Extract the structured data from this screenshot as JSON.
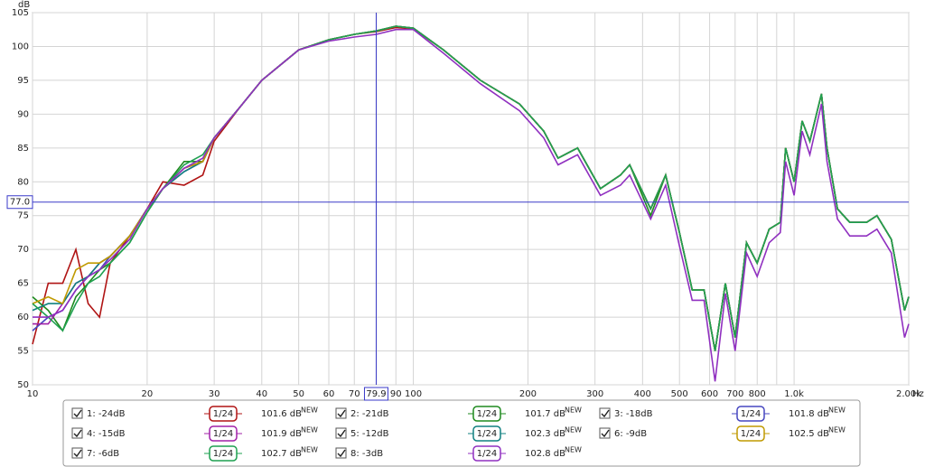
{
  "chart_data": {
    "type": "line",
    "x_unit": "Hz",
    "y_unit": "dB",
    "xlog": true,
    "grid": true,
    "xlim": [
      10,
      2000
    ],
    "ylim": [
      50,
      105
    ],
    "xticks": [
      10,
      20,
      30,
      40,
      50,
      60,
      70,
      90,
      100,
      200,
      300,
      400,
      500,
      600,
      700,
      800,
      {
        "value": 1000,
        "label": "1.0k"
      },
      {
        "value": 2000,
        "label": "2.00k"
      }
    ],
    "xminor": [
      80,
      900
    ],
    "yticks": [
      50,
      55,
      60,
      65,
      70,
      75,
      80,
      85,
      90,
      95,
      100,
      105
    ],
    "cursor": {
      "x": 79.9,
      "y": {
        "value": 77,
        "label": "77.0"
      },
      "color": "#3a3ac8"
    },
    "x": [
      10,
      11,
      12,
      13,
      14,
      15,
      16,
      18,
      20,
      22,
      25,
      28,
      30,
      35,
      40,
      50,
      60,
      70,
      80,
      90,
      100,
      120,
      150,
      190,
      220,
      240,
      270,
      310,
      350,
      370,
      420,
      460,
      500,
      540,
      580,
      620,
      660,
      700,
      750,
      800,
      860,
      920,
      950,
      1000,
      1050,
      1100,
      1180,
      1220,
      1300,
      1400,
      1550,
      1650,
      1800,
      1950,
      2000
    ],
    "series": [
      {
        "name": "1: -24dB",
        "color": "#b01414",
        "smoothing": "1/24",
        "level": "101.6 dB",
        "badge": "NEW",
        "values": [
          56,
          65,
          65,
          70,
          62,
          60,
          68,
          72,
          76,
          80,
          79.5,
          81,
          86,
          91,
          95,
          99.5,
          101,
          101.8,
          102.2,
          102.8,
          102.6,
          99.5,
          95,
          91.5,
          87.5,
          83.5,
          85,
          79,
          81,
          82.5,
          76,
          81,
          72.5,
          64,
          64,
          55,
          65,
          57,
          71,
          68,
          73,
          74,
          85,
          80,
          89,
          86,
          93,
          85,
          76,
          74,
          74,
          75,
          71.5,
          61,
          63
        ]
      },
      {
        "name": "2: -21dB",
        "color": "#1e8a1e",
        "smoothing": "1/24",
        "level": "101.7 dB",
        "badge": "NEW",
        "values": [
          63,
          61,
          58,
          63,
          65,
          67,
          68,
          71,
          75.5,
          79,
          83,
          83,
          86.5,
          91,
          95,
          99.5,
          101,
          101.8,
          102.3,
          103,
          102.7,
          99.5,
          95,
          91.5,
          87.5,
          83.5,
          85,
          79,
          81,
          82.5,
          75,
          81,
          72.5,
          64,
          64,
          55,
          65,
          57,
          71,
          68,
          73,
          74,
          85,
          80,
          89,
          86,
          93,
          85,
          76,
          74,
          74,
          75,
          71.5,
          61,
          63
        ]
      },
      {
        "name": "3: -18dB",
        "color": "#4646c0",
        "smoothing": "1/24",
        "level": "101.8 dB",
        "badge": "NEW",
        "values": [
          58,
          60,
          61,
          64,
          66,
          67,
          69,
          72,
          76,
          79,
          81.5,
          83,
          86.5,
          91,
          95,
          99.5,
          101,
          101.8,
          102.3,
          103,
          102.7,
          99.5,
          95,
          91.5,
          87.5,
          83.5,
          85,
          79,
          81,
          82.5,
          76,
          81,
          72.5,
          64,
          64,
          55,
          65,
          57,
          71,
          68,
          73,
          74,
          85,
          80,
          89,
          86,
          93,
          85,
          76,
          74,
          74,
          75,
          71.5,
          61,
          63
        ]
      },
      {
        "name": "4: -15dB",
        "color": "#a020a8",
        "smoothing": "1/24",
        "level": "101.9 dB",
        "badge": "NEW",
        "values": [
          59,
          59,
          62,
          65,
          66,
          68,
          69,
          72,
          76,
          79,
          82,
          83,
          86.5,
          91,
          95,
          99.5,
          101,
          101.8,
          102.3,
          103,
          102.7,
          99.5,
          95,
          91.5,
          87.5,
          83.5,
          85,
          79,
          81,
          82.5,
          76,
          81,
          72.5,
          64,
          64,
          55,
          65,
          57,
          71,
          68,
          73,
          74,
          85,
          80,
          89,
          86,
          93,
          85,
          76,
          74,
          74,
          75,
          71.5,
          61,
          63
        ]
      },
      {
        "name": "5: -12dB",
        "color": "#108080",
        "smoothing": "1/24",
        "level": "102.3 dB",
        "badge": "NEW",
        "values": [
          61,
          62,
          62,
          65,
          66,
          68,
          69,
          72,
          76,
          79,
          81.5,
          83,
          86.5,
          91,
          95,
          99.5,
          101,
          101.8,
          102.3,
          103,
          102.7,
          99.5,
          95,
          91.5,
          87.5,
          83.5,
          85,
          79,
          81,
          82.5,
          76,
          81,
          72.5,
          64,
          64,
          55,
          65,
          57,
          71,
          68,
          73,
          74,
          85,
          80,
          89,
          86,
          93,
          85,
          76,
          74,
          74,
          75,
          71.5,
          61,
          63
        ]
      },
      {
        "name": "6: -9dB",
        "color": "#c09a00",
        "smoothing": "1/24",
        "level": "102.5 dB",
        "badge": "NEW",
        "values": [
          62,
          63,
          62,
          67,
          68,
          68,
          69,
          72,
          76,
          79,
          82,
          83,
          86.5,
          91,
          95,
          99.5,
          101,
          101.8,
          102.3,
          103,
          102.7,
          99.5,
          95,
          91.5,
          87.5,
          83.5,
          85,
          79,
          81,
          82.5,
          76,
          81,
          72.5,
          64,
          64,
          55,
          65,
          57,
          71,
          68,
          73,
          74,
          85,
          80,
          89,
          86,
          93,
          85,
          76,
          74,
          74,
          75,
          71.5,
          61,
          63
        ]
      },
      {
        "name": "7: -6dB",
        "color": "#1fa050",
        "smoothing": "1/24",
        "level": "102.7 dB",
        "badge": "NEW",
        "values": [
          62,
          60,
          58,
          62,
          65,
          66,
          68,
          71,
          75.5,
          79,
          82.5,
          84,
          86.5,
          91,
          95,
          99.5,
          101,
          101.8,
          102.3,
          103,
          102.7,
          99.5,
          95,
          91.5,
          87.5,
          83.5,
          85,
          79,
          81,
          82.5,
          76,
          81,
          72.5,
          64,
          64,
          55,
          65,
          57,
          71,
          68,
          73,
          74,
          85,
          80,
          89,
          86,
          93,
          85,
          76,
          74,
          74,
          75,
          71.5,
          61,
          63
        ]
      },
      {
        "name": "8: -3dB",
        "color": "#9030c0",
        "smoothing": "1/24",
        "level": "102.8 dB",
        "badge": "NEW",
        "values": [
          60,
          60,
          61,
          64,
          66,
          67,
          68.5,
          71.5,
          76,
          79,
          82,
          83.5,
          86.5,
          91,
          95,
          99.5,
          100.8,
          101.4,
          101.8,
          102.5,
          102.5,
          99,
          94.5,
          90.5,
          86.5,
          82.5,
          84,
          78,
          79.5,
          81,
          74.5,
          79.5,
          70.5,
          62.5,
          62.5,
          50.5,
          63.5,
          55,
          69.5,
          66,
          71,
          72.5,
          83,
          78,
          87.5,
          84,
          91.5,
          83,
          74.5,
          72,
          72,
          73,
          69.5,
          57,
          59
        ]
      }
    ]
  }
}
